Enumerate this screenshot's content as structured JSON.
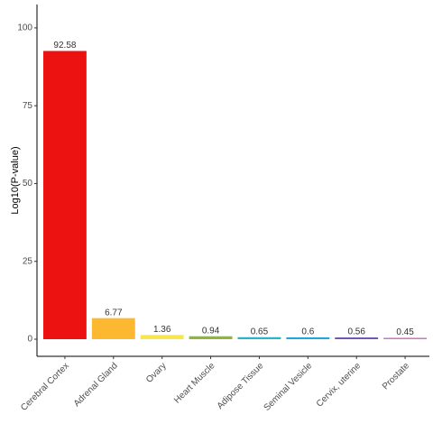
{
  "chart_data": {
    "type": "bar",
    "y_label": "Log10(P-value)",
    "categories": [
      "Cerebral Cortex",
      "Adrenal Gland",
      "Ovary",
      "Heart Muscle",
      "Adipose Tissue",
      "Seminal Vesicle",
      "Cervix, uterine",
      "Prostate"
    ],
    "values": [
      92.58,
      6.77,
      1.36,
      0.94,
      0.65,
      0.6,
      0.56,
      0.45
    ],
    "colors": [
      "#ec1212",
      "#fbb830",
      "#f6e84a",
      "#8fb53b",
      "#2ab4c9",
      "#1fa6dd",
      "#6c52b6",
      "#c77cc0"
    ],
    "ylim": [
      -5.5,
      107.5
    ],
    "yticks": [
      0,
      25,
      50,
      75,
      100
    ],
    "grid": false
  }
}
